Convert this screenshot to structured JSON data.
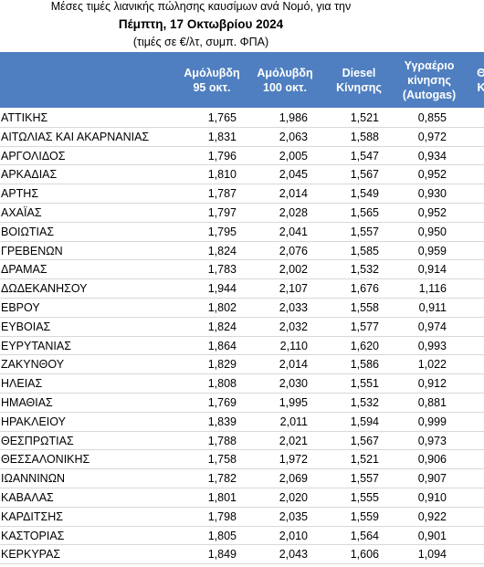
{
  "header": {
    "title_lines": [
      "Μέσες τιμές λιανικής πώλησης καυσίμων ανά Νομό, για την",
      "Πέμπτη, 17 Οκτωβρίου 2024",
      "(τιμές σε €/λτ, συμπ. ΦΠΑ)"
    ]
  },
  "table": {
    "columns": [
      [
        "Αμόλυβδη",
        "95 οκτ."
      ],
      [
        "Αμόλυβδη",
        "100 οκτ."
      ],
      [
        "Diesel",
        "Κίνησης"
      ],
      [
        "Υγραέριο",
        "κίνησης",
        "(Autogas)"
      ],
      [
        "Θ",
        "Κ"
      ]
    ],
    "rows": [
      [
        "ΑΤΤΙΚΗΣ",
        "1,765",
        "1,986",
        "1,521",
        "0,855"
      ],
      [
        "ΑΙΤΩΛΙΑΣ ΚΑΙ ΑΚΑΡΝΑΝΙΑΣ",
        "1,831",
        "2,063",
        "1,588",
        "0,972"
      ],
      [
        "ΑΡΓΟΛΙΔΟΣ",
        "1,796",
        "2,005",
        "1,547",
        "0,934"
      ],
      [
        "ΑΡΚΑΔΙΑΣ",
        "1,810",
        "2,045",
        "1,567",
        "0,952"
      ],
      [
        "ΑΡΤΗΣ",
        "1,787",
        "2,014",
        "1,549",
        "0,930"
      ],
      [
        "ΑΧΑΪΑΣ",
        "1,797",
        "2,028",
        "1,565",
        "0,952"
      ],
      [
        "ΒΟΙΩΤΙΑΣ",
        "1,795",
        "2,041",
        "1,557",
        "0,950"
      ],
      [
        "ΓΡΕΒΕΝΩΝ",
        "1,824",
        "2,076",
        "1,585",
        "0,959"
      ],
      [
        "ΔΡΑΜΑΣ",
        "1,783",
        "2,002",
        "1,532",
        "0,914"
      ],
      [
        "ΔΩΔΕΚΑΝΗΣΟΥ",
        "1,944",
        "2,107",
        "1,676",
        "1,116"
      ],
      [
        "ΕΒΡΟΥ",
        "1,802",
        "2,033",
        "1,558",
        "0,911"
      ],
      [
        "ΕΥΒΟΙΑΣ",
        "1,824",
        "2,032",
        "1,577",
        "0,974"
      ],
      [
        "ΕΥΡΥΤΑΝΙΑΣ",
        "1,864",
        "2,110",
        "1,620",
        "0,993"
      ],
      [
        "ΖΑΚΥΝΘΟΥ",
        "1,829",
        "2,014",
        "1,586",
        "1,022"
      ],
      [
        "ΗΛΕΙΑΣ",
        "1,808",
        "2,030",
        "1,551",
        "0,912"
      ],
      [
        "ΗΜΑΘΙΑΣ",
        "1,769",
        "1,995",
        "1,532",
        "0,881"
      ],
      [
        "ΗΡΑΚΛΕΙΟΥ",
        "1,839",
        "2,011",
        "1,594",
        "0,999"
      ],
      [
        "ΘΕΣΠΡΩΤΙΑΣ",
        "1,788",
        "2,021",
        "1,567",
        "0,973"
      ],
      [
        "ΘΕΣΣΑΛΟΝΙΚΗΣ",
        "1,758",
        "1,972",
        "1,521",
        "0,906"
      ],
      [
        "ΙΩΑΝΝΙΝΩΝ",
        "1,782",
        "2,069",
        "1,557",
        "0,907"
      ],
      [
        "ΚΑΒΑΛΑΣ",
        "1,801",
        "2,020",
        "1,555",
        "0,910"
      ],
      [
        "ΚΑΡΔΙΤΣΗΣ",
        "1,798",
        "2,035",
        "1,559",
        "0,922"
      ],
      [
        "ΚΑΣΤΟΡΙΑΣ",
        "1,805",
        "2,010",
        "1,564",
        "0,901"
      ],
      [
        "ΚΕΡΚΥΡΑΣ",
        "1,849",
        "2,043",
        "1,606",
        "1,094"
      ]
    ]
  }
}
